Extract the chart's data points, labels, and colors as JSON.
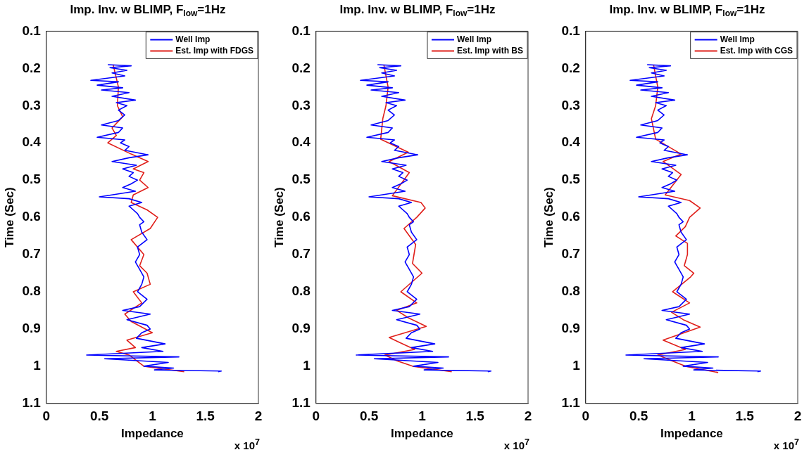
{
  "chart_data": [
    {
      "type": "line",
      "title": "Imp. Inv. w BLIMP, F$_{low}$=1Hz",
      "xlabel": "Impedance",
      "ylabel": "Time (Sec)",
      "xlim": [
        0,
        2
      ],
      "xticks": [
        0,
        0.5,
        1,
        1.5,
        2
      ],
      "ylim": [
        1.1,
        0.1
      ],
      "yticks": [
        0.1,
        0.2,
        0.3,
        0.4,
        0.5,
        0.6,
        0.7,
        0.8,
        0.9,
        1,
        1.1
      ],
      "legend": "top right",
      "marker": "none",
      "grid": false,
      "annotations": [
        "x 10$^{7}$"
      ],
      "series": [
        {
          "name": "Well Imp",
          "color": "#0000ff",
          "x": [
            0.58,
            0.8,
            0.6,
            0.76,
            0.62,
            0.74,
            0.42,
            0.68,
            0.48,
            0.72,
            0.52,
            0.78,
            0.62,
            0.84,
            0.66,
            0.76,
            0.68,
            0.74,
            0.68,
            0.52,
            0.72,
            0.68,
            0.48,
            0.74,
            0.7,
            0.78,
            0.74,
            0.96,
            0.78,
            0.62,
            0.85,
            0.72,
            0.82,
            0.78,
            0.86,
            0.8,
            0.72,
            0.84,
            0.5,
            0.78,
            0.9,
            0.78,
            0.82,
            0.86,
            0.88,
            0.92,
            0.88,
            0.9,
            0.95,
            0.86,
            0.88,
            0.84,
            0.88,
            0.92,
            0.9,
            0.86,
            0.95,
            0.88,
            0.72,
            0.98,
            0.76,
            0.95,
            0.98,
            0.9,
            0.85,
            1.12,
            0.9,
            1.1,
            0.38,
            1.25,
            0.55,
            1.15,
            0.92,
            1.2,
            1.02,
            1.65,
            1.62
          ],
          "values": [
            0.19,
            0.193,
            0.198,
            0.205,
            0.212,
            0.22,
            0.232,
            0.236,
            0.245,
            0.252,
            0.258,
            0.265,
            0.275,
            0.285,
            0.292,
            0.3,
            0.312,
            0.325,
            0.34,
            0.352,
            0.36,
            0.372,
            0.385,
            0.392,
            0.4,
            0.41,
            0.42,
            0.432,
            0.44,
            0.45,
            0.46,
            0.47,
            0.48,
            0.49,
            0.5,
            0.51,
            0.52,
            0.53,
            0.545,
            0.55,
            0.56,
            0.57,
            0.58,
            0.59,
            0.6,
            0.612,
            0.62,
            0.64,
            0.66,
            0.68,
            0.7,
            0.72,
            0.74,
            0.76,
            0.78,
            0.8,
            0.82,
            0.84,
            0.85,
            0.86,
            0.875,
            0.89,
            0.9,
            0.91,
            0.925,
            0.94,
            0.95,
            0.96,
            0.97,
            0.975,
            0.98,
            0.99,
            1,
            1.005,
            1.01,
            1.013,
            1.015
          ]
        },
        {
          "name": "Est. Imp with FDGS",
          "color": "#e0201b",
          "x": [
            0.63,
            0.68,
            0.67,
            0.72,
            0.62,
            0.66,
            0.58,
            0.8,
            0.96,
            0.82,
            0.92,
            0.88,
            0.96,
            0.82,
            0.8,
            0.95,
            1.05,
            0.98,
            0.8,
            0.92,
            0.88,
            0.95,
            0.98,
            0.82,
            0.9,
            0.74,
            0.8,
            1,
            0.76,
            0.84,
            0.66,
            0.78,
            0.92,
            1.3
          ],
          "values": [
            0.19,
            0.25,
            0.3,
            0.33,
            0.36,
            0.38,
            0.4,
            0.43,
            0.45,
            0.47,
            0.48,
            0.5,
            0.52,
            0.54,
            0.56,
            0.58,
            0.6,
            0.63,
            0.66,
            0.7,
            0.73,
            0.75,
            0.78,
            0.8,
            0.83,
            0.86,
            0.88,
            0.91,
            0.93,
            0.95,
            0.96,
            0.97,
            1,
            1.015
          ]
        }
      ]
    },
    {
      "type": "line",
      "title": "Imp. Inv. w BLIMP, F$_{low}$=1Hz",
      "xlabel": "Impedance",
      "ylabel": "Time (Sec)",
      "xlim": [
        0,
        2
      ],
      "xticks": [
        0,
        0.5,
        1,
        1.5,
        2
      ],
      "ylim": [
        1.1,
        0.1
      ],
      "yticks": [
        0.1,
        0.2,
        0.3,
        0.4,
        0.5,
        0.6,
        0.7,
        0.8,
        0.9,
        1,
        1.1
      ],
      "legend": "top right",
      "marker": "none",
      "grid": false,
      "annotations": [
        "x 10$^{7}$"
      ],
      "series": [
        {
          "name": "Well Imp",
          "color": "#0000ff",
          "x": [
            0.58,
            0.8,
            0.6,
            0.76,
            0.62,
            0.74,
            0.42,
            0.68,
            0.48,
            0.72,
            0.52,
            0.78,
            0.62,
            0.84,
            0.66,
            0.76,
            0.68,
            0.74,
            0.68,
            0.52,
            0.72,
            0.68,
            0.48,
            0.74,
            0.7,
            0.78,
            0.74,
            0.96,
            0.78,
            0.62,
            0.85,
            0.72,
            0.82,
            0.78,
            0.86,
            0.8,
            0.72,
            0.84,
            0.5,
            0.78,
            0.9,
            0.78,
            0.82,
            0.86,
            0.88,
            0.92,
            0.88,
            0.9,
            0.95,
            0.86,
            0.88,
            0.84,
            0.88,
            0.92,
            0.9,
            0.86,
            0.95,
            0.88,
            0.72,
            0.98,
            0.76,
            0.95,
            0.98,
            0.9,
            0.85,
            1.12,
            0.9,
            1.1,
            0.38,
            1.25,
            0.55,
            1.15,
            0.92,
            1.2,
            1.02,
            1.65,
            1.62
          ],
          "values": [
            0.19,
            0.193,
            0.198,
            0.205,
            0.212,
            0.22,
            0.232,
            0.236,
            0.245,
            0.252,
            0.258,
            0.265,
            0.275,
            0.285,
            0.292,
            0.3,
            0.312,
            0.325,
            0.34,
            0.352,
            0.36,
            0.372,
            0.385,
            0.392,
            0.4,
            0.41,
            0.42,
            0.432,
            0.44,
            0.45,
            0.46,
            0.47,
            0.48,
            0.49,
            0.5,
            0.51,
            0.52,
            0.53,
            0.545,
            0.55,
            0.56,
            0.57,
            0.58,
            0.59,
            0.6,
            0.612,
            0.62,
            0.64,
            0.66,
            0.68,
            0.7,
            0.72,
            0.74,
            0.76,
            0.78,
            0.8,
            0.82,
            0.84,
            0.85,
            0.86,
            0.875,
            0.89,
            0.9,
            0.91,
            0.925,
            0.94,
            0.95,
            0.96,
            0.97,
            0.975,
            0.98,
            0.99,
            1,
            1.005,
            1.01,
            1.013,
            1.015
          ]
        },
        {
          "name": "Est. Imp with BS",
          "color": "#e0201b",
          "x": [
            0.64,
            0.68,
            0.66,
            0.63,
            0.61,
            0.87,
            0.69,
            0.88,
            0.72,
            0.99,
            1.03,
            0.95,
            0.83,
            0.94,
            0.91,
            1,
            0.8,
            0.95,
            0.76,
            0.87,
            1.04,
            0.69,
            0.78,
            0.93,
            0.65,
            0.76,
            0.91,
            1.28
          ],
          "values": [
            0.19,
            0.25,
            0.3,
            0.335,
            0.39,
            0.425,
            0.45,
            0.48,
            0.542,
            0.56,
            0.575,
            0.6,
            0.63,
            0.673,
            0.724,
            0.75,
            0.8,
            0.83,
            0.85,
            0.87,
            0.893,
            0.923,
            0.935,
            0.955,
            0.97,
            0.985,
            1,
            1.015
          ]
        }
      ]
    },
    {
      "type": "line",
      "title": "Imp. Inv. w BLIMP, F$_{low}$=1Hz",
      "xlabel": "Impedance",
      "ylabel": "Time (Sec)",
      "xlim": [
        0,
        2
      ],
      "xticks": [
        0,
        0.5,
        1,
        1.5,
        2
      ],
      "ylim": [
        1.1,
        0.1
      ],
      "yticks": [
        0.1,
        0.2,
        0.3,
        0.4,
        0.5,
        0.6,
        0.7,
        0.8,
        0.9,
        1,
        1.1
      ],
      "legend": "top right",
      "marker": "none",
      "grid": false,
      "annotations": [
        "x 10$^{7}$"
      ],
      "series": [
        {
          "name": "Well Imp",
          "color": "#0000ff",
          "x": [
            0.58,
            0.8,
            0.6,
            0.76,
            0.62,
            0.74,
            0.42,
            0.68,
            0.48,
            0.72,
            0.52,
            0.78,
            0.62,
            0.84,
            0.66,
            0.76,
            0.68,
            0.74,
            0.68,
            0.52,
            0.72,
            0.68,
            0.48,
            0.74,
            0.7,
            0.78,
            0.74,
            0.96,
            0.78,
            0.62,
            0.85,
            0.72,
            0.82,
            0.78,
            0.86,
            0.8,
            0.72,
            0.84,
            0.5,
            0.78,
            0.9,
            0.78,
            0.82,
            0.86,
            0.88,
            0.92,
            0.88,
            0.9,
            0.95,
            0.86,
            0.88,
            0.84,
            0.88,
            0.92,
            0.9,
            0.86,
            0.95,
            0.88,
            0.72,
            0.98,
            0.76,
            0.95,
            0.98,
            0.9,
            0.85,
            1.12,
            0.9,
            1.1,
            0.38,
            1.25,
            0.55,
            1.15,
            0.92,
            1.2,
            1.02,
            1.65,
            1.62
          ],
          "values": [
            0.19,
            0.193,
            0.198,
            0.205,
            0.212,
            0.22,
            0.232,
            0.236,
            0.245,
            0.252,
            0.258,
            0.265,
            0.275,
            0.285,
            0.292,
            0.3,
            0.312,
            0.325,
            0.34,
            0.352,
            0.36,
            0.372,
            0.385,
            0.392,
            0.4,
            0.41,
            0.42,
            0.432,
            0.44,
            0.45,
            0.46,
            0.47,
            0.48,
            0.49,
            0.5,
            0.51,
            0.52,
            0.53,
            0.545,
            0.55,
            0.56,
            0.57,
            0.58,
            0.59,
            0.6,
            0.612,
            0.62,
            0.64,
            0.66,
            0.68,
            0.7,
            0.72,
            0.74,
            0.76,
            0.78,
            0.8,
            0.82,
            0.84,
            0.85,
            0.86,
            0.875,
            0.89,
            0.9,
            0.91,
            0.925,
            0.94,
            0.95,
            0.96,
            0.97,
            0.975,
            0.98,
            0.99,
            1,
            1.005,
            1.01,
            1.013,
            1.015
          ]
        },
        {
          "name": "Est. Imp with CGS",
          "color": "#e0201b",
          "x": [
            0.64,
            0.68,
            0.66,
            0.62,
            0.66,
            0.9,
            0.73,
            0.9,
            0.75,
            0.98,
            1.08,
            0.98,
            0.94,
            0.85,
            0.96,
            0.96,
            0.93,
            1.02,
            0.99,
            0.82,
            0.98,
            0.81,
            0.92,
            1.08,
            0.73,
            0.94,
            0.68,
            0.81,
            0.94,
            1.25
          ],
          "values": [
            0.19,
            0.25,
            0.3,
            0.335,
            0.39,
            0.43,
            0.45,
            0.485,
            0.54,
            0.555,
            0.575,
            0.6,
            0.625,
            0.65,
            0.67,
            0.7,
            0.73,
            0.75,
            0.76,
            0.8,
            0.83,
            0.855,
            0.875,
            0.895,
            0.93,
            0.955,
            0.97,
            0.985,
            1,
            1.017
          ]
        }
      ]
    }
  ]
}
